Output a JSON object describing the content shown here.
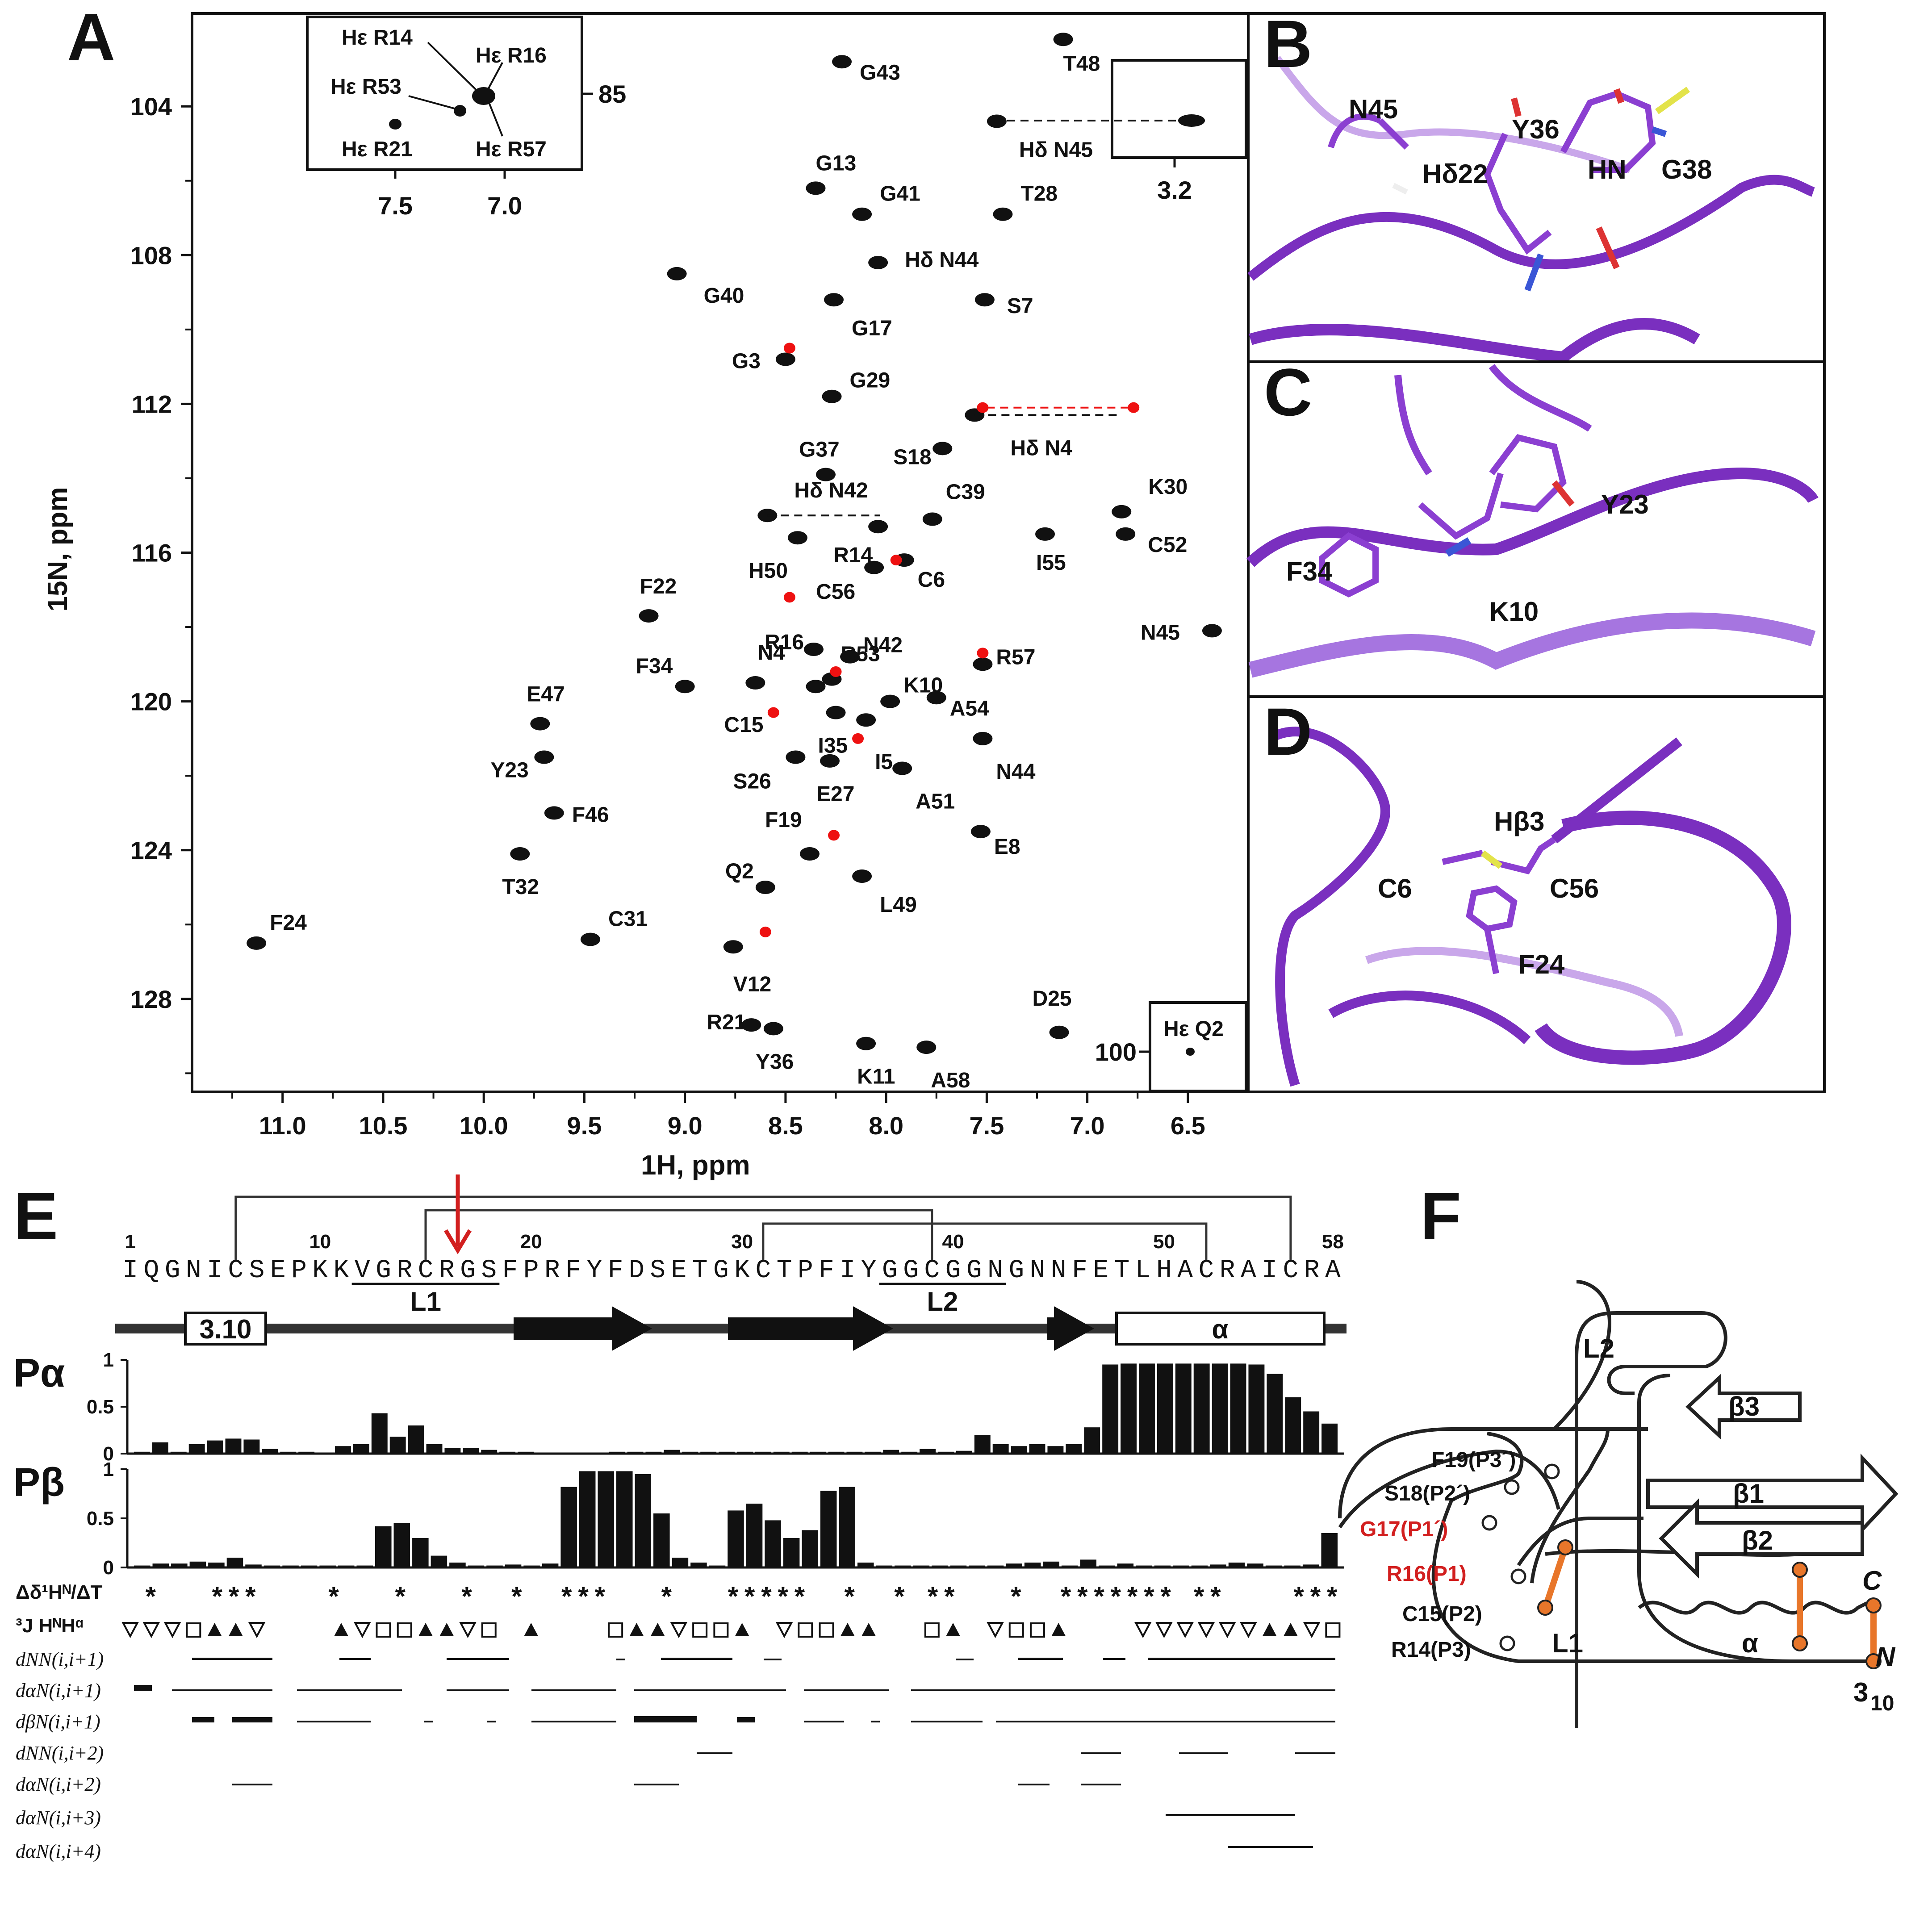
{
  "panels": {
    "A": "A",
    "B": "B",
    "C": "C",
    "D": "D",
    "E": "E",
    "F": "F"
  },
  "nmr": {
    "x_label": "1H, ppm",
    "y_label": "15N, ppm",
    "x_ticks": [
      "11.0",
      "10.5",
      "10.0",
      "9.5",
      "9.0",
      "8.5",
      "8.0",
      "7.5",
      "7.0",
      "6.5"
    ],
    "y_ticks": [
      "104",
      "108",
      "112",
      "116",
      "120",
      "124",
      "128"
    ],
    "inset_top": {
      "labels": [
        "Hε R14",
        "Hε R16",
        "Hε R53",
        "Hε R21",
        "Hε R57"
      ],
      "x_ticks": [
        "7.5",
        "7.0"
      ],
      "y_tick": "85"
    },
    "inset_n45": {
      "x_tick": "3.2"
    },
    "inset_q2": {
      "label": "Hε Q2",
      "y_tick": "100"
    },
    "peaks": [
      {
        "name": "T48",
        "h": 7.12,
        "n": 102.2
      },
      {
        "name": "G43",
        "h": 8.22,
        "n": 102.8
      },
      {
        "name": "Hδ N45",
        "h": 7.45,
        "n": 104.4
      },
      {
        "name": "G13",
        "h": 8.35,
        "n": 106.2
      },
      {
        "name": "G41",
        "h": 8.12,
        "n": 106.9
      },
      {
        "name": "T28",
        "h": 7.42,
        "n": 106.9
      },
      {
        "name": "Hδ N44",
        "h": 8.04,
        "n": 108.2
      },
      {
        "name": "G40",
        "h": 9.04,
        "n": 108.5
      },
      {
        "name": "G17",
        "h": 8.26,
        "n": 109.2
      },
      {
        "name": "S7",
        "h": 7.51,
        "n": 109.2
      },
      {
        "name": "G3",
        "h": 8.5,
        "n": 110.8
      },
      {
        "name": "G29",
        "h": 8.27,
        "n": 111.8
      },
      {
        "name": "Hδ N4",
        "h": 7.56,
        "n": 112.3
      },
      {
        "name": "S18",
        "h": 7.72,
        "n": 113.2
      },
      {
        "name": "G37",
        "h": 8.3,
        "n": 113.9
      },
      {
        "name": "Hδ N42",
        "h": 8.59,
        "n": 115.0
      },
      {
        "name": "C39",
        "h": 7.77,
        "n": 115.1
      },
      {
        "name": "R14",
        "h": 8.04,
        "n": 115.3
      },
      {
        "name": "H50",
        "h": 8.44,
        "n": 115.6
      },
      {
        "name": "C6",
        "h": 7.91,
        "n": 116.2
      },
      {
        "name": "C56",
        "h": 8.06,
        "n": 116.4
      },
      {
        "name": "I55",
        "h": 7.21,
        "n": 115.5
      },
      {
        "name": "K30",
        "h": 6.83,
        "n": 114.9
      },
      {
        "name": "C52",
        "h": 6.81,
        "n": 115.5
      },
      {
        "name": "F22",
        "h": 9.18,
        "n": 117.7
      },
      {
        "name": "R16",
        "h": 8.36,
        "n": 118.6
      },
      {
        "name": "N42",
        "h": 8.18,
        "n": 118.8
      },
      {
        "name": "N45",
        "h": 6.38,
        "n": 118.1
      },
      {
        "name": "R57",
        "h": 7.52,
        "n": 119.0
      },
      {
        "name": "F34",
        "h": 9.0,
        "n": 119.6
      },
      {
        "name": "N4",
        "h": 8.35,
        "n": 119.6
      },
      {
        "name": "R53",
        "h": 8.27,
        "n": 119.4
      },
      {
        "name": "K10",
        "h": 7.98,
        "n": 120.0
      },
      {
        "name": "C15",
        "h": 8.65,
        "n": 119.5
      },
      {
        "name": "I35",
        "h": 8.25,
        "n": 120.3
      },
      {
        "name": "I5",
        "h": 8.1,
        "n": 120.5
      },
      {
        "name": "A54",
        "h": 7.75,
        "n": 119.9
      },
      {
        "name": "E47",
        "h": 9.72,
        "n": 120.6
      },
      {
        "name": "N44",
        "h": 7.52,
        "n": 121.0
      },
      {
        "name": "Y23",
        "h": 9.7,
        "n": 121.5
      },
      {
        "name": "S26",
        "h": 8.45,
        "n": 121.5
      },
      {
        "name": "E27",
        "h": 8.28,
        "n": 121.6
      },
      {
        "name": "A51",
        "h": 7.92,
        "n": 121.8
      },
      {
        "name": "F46",
        "h": 9.65,
        "n": 123.0
      },
      {
        "name": "E8",
        "h": 7.53,
        "n": 123.5
      },
      {
        "name": "F19",
        "h": 8.38,
        "n": 124.1
      },
      {
        "name": "T32",
        "h": 9.82,
        "n": 124.1
      },
      {
        "name": "L49",
        "h": 8.12,
        "n": 124.7
      },
      {
        "name": "Q2",
        "h": 8.6,
        "n": 125.0
      },
      {
        "name": "F24",
        "h": 11.13,
        "n": 126.5
      },
      {
        "name": "C31",
        "h": 9.47,
        "n": 126.4
      },
      {
        "name": "V12",
        "h": 8.76,
        "n": 126.6
      },
      {
        "name": "D25",
        "h": 7.14,
        "n": 128.9
      },
      {
        "name": "R21",
        "h": 8.67,
        "n": 128.7
      },
      {
        "name": "Y36",
        "h": 8.56,
        "n": 128.8
      },
      {
        "name": "K11",
        "h": 8.1,
        "n": 129.2
      },
      {
        "name": "A58",
        "h": 7.8,
        "n": 129.3
      }
    ]
  },
  "structures": {
    "B": [
      "N45",
      "Hδ22",
      "Y36",
      "HN",
      "G38"
    ],
    "C": [
      "Y23",
      "F34",
      "K10"
    ],
    "D": [
      "Hβ3",
      "C6",
      "C56",
      "F24"
    ]
  },
  "sequence": {
    "text": "IQGNICSEPKKVGRCRGSFPRFYFDSETGKCTPFIYGGCGGNGNNFETLHACRAICRA",
    "numbers": [
      "1",
      "10",
      "20",
      "30",
      "40",
      "50",
      "58"
    ],
    "loops": [
      "L1",
      "L2"
    ],
    "sec": {
      "helix310": "3.10",
      "alpha": "α"
    },
    "p_alpha_label": "Pα",
    "p_beta_label": "Pβ",
    "scale": [
      "1",
      "0.5",
      "0"
    ],
    "p_alpha": [
      0.02,
      0.12,
      0.02,
      0.1,
      0.14,
      0.16,
      0.15,
      0.05,
      0.02,
      0.02,
      0.01,
      0.08,
      0.1,
      0.43,
      0.18,
      0.3,
      0.1,
      0.06,
      0.06,
      0.04,
      0.02,
      0.02,
      0.01,
      0.01,
      0.01,
      0.01,
      0.02,
      0.02,
      0.02,
      0.04,
      0.02,
      0.02,
      0.02,
      0.02,
      0.02,
      0.02,
      0.02,
      0.02,
      0.02,
      0.02,
      0.02,
      0.04,
      0.02,
      0.05,
      0.02,
      0.03,
      0.2,
      0.1,
      0.08,
      0.1,
      0.08,
      0.1,
      0.28,
      0.95,
      0.96,
      0.96,
      0.96,
      0.96,
      0.96,
      0.96,
      0.96,
      0.95,
      0.85,
      0.6,
      0.45,
      0.32
    ],
    "p_beta": [
      0.02,
      0.04,
      0.04,
      0.06,
      0.05,
      0.1,
      0.03,
      0.02,
      0.02,
      0.02,
      0.02,
      0.02,
      0.02,
      0.42,
      0.45,
      0.3,
      0.12,
      0.05,
      0.02,
      0.02,
      0.03,
      0.02,
      0.04,
      0.82,
      0.98,
      0.98,
      0.98,
      0.95,
      0.55,
      0.1,
      0.05,
      0.02,
      0.58,
      0.65,
      0.48,
      0.3,
      0.38,
      0.78,
      0.82,
      0.05,
      0.02,
      0.02,
      0.02,
      0.02,
      0.02,
      0.02,
      0.02,
      0.04,
      0.05,
      0.06,
      0.02,
      0.08,
      0.02,
      0.04,
      0.02,
      0.02,
      0.02,
      0.02,
      0.03,
      0.05,
      0.04,
      0.02,
      0.02,
      0.03,
      0.35
    ],
    "rows": {
      "ddelta": "Δδ¹Hᴺ/ΔT",
      "j": "³J HᴺHᵅ",
      "dNN1": "dNN(i,i+1)",
      "daN1": "dαN(i,i+1)",
      "dbN1": "dβN(i,i+1)",
      "dNN2": "dNN(i,i+2)",
      "daN2": "dαN(i,i+2)",
      "daN3": "dαN(i,i+3)",
      "daN4": "dαN(i,i+4)"
    },
    "stars": [
      1,
      5,
      6,
      7,
      12,
      16,
      20,
      23,
      26,
      27,
      28,
      32,
      36,
      37,
      38,
      39,
      40,
      43,
      46,
      48,
      49,
      53,
      56,
      57,
      58,
      59,
      60,
      61,
      62,
      64,
      65,
      70,
      71,
      72
    ],
    "j_codes": [
      "",
      "",
      "",
      "",
      "",
      "",
      "",
      "",
      "",
      "",
      "",
      "",
      "",
      "",
      "",
      "",
      "",
      "",
      "",
      "",
      "",
      "",
      "",
      "",
      "",
      "",
      "",
      "",
      "",
      "",
      "",
      "",
      "",
      "",
      "",
      "",
      "",
      "",
      "",
      "",
      "",
      "",
      "",
      "",
      "",
      "",
      "",
      "",
      "",
      "",
      "",
      "",
      "",
      "",
      "",
      "",
      "",
      "",
      "",
      "",
      "",
      "",
      "",
      "",
      "",
      "",
      "",
      ""
    ]
  },
  "topology": {
    "strands": [
      "β3",
      "β1",
      "β2"
    ],
    "loops": [
      "L2",
      "L1"
    ],
    "helix": "α",
    "termini": [
      "C",
      "N"
    ],
    "h310": "3",
    "h310_sub": "10",
    "residues": [
      "F19(P3´)",
      "S18(P2´)",
      "G17(P1´)",
      "R16(P1)",
      "C15(P2)",
      "R14(P3)"
    ],
    "accent": "#e8762a",
    "red": "#d21f1f"
  }
}
